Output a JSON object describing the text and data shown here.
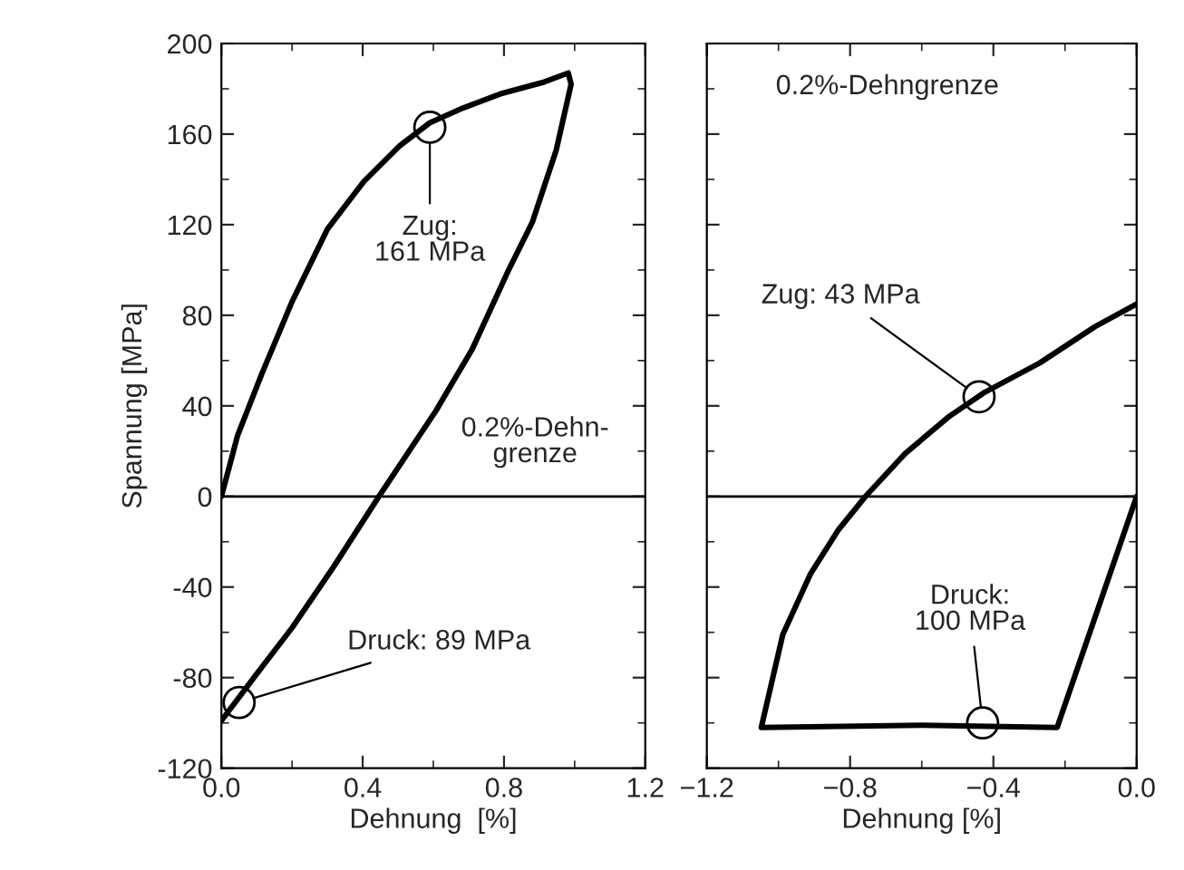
{
  "chart_data": [
    {
      "type": "line",
      "xlabel": "Dehnung  [%]",
      "ylabel": "Spannung [MPa]",
      "xlim": [
        0,
        1.2
      ],
      "ylim": [
        -120,
        200
      ],
      "xticks": [
        {
          "value": 0,
          "label": "0.0"
        },
        {
          "value": 0.4,
          "label": "0.4"
        },
        {
          "value": 0.8,
          "label": "0.8"
        },
        {
          "value": 1.2,
          "label": "1.2"
        }
      ],
      "yticks": [
        -120,
        -80,
        -40,
        0,
        40,
        80,
        120,
        160,
        200
      ],
      "grid": false,
      "series": [
        {
          "color": "#000000",
          "x": [
            0,
            0.046,
            0.114,
            0.2,
            0.3,
            0.403,
            0.506,
            0.59,
            0.676,
            0.795,
            0.914,
            0.982,
            0.99,
            0.948,
            0.88,
            0.81,
            0.71,
            0.608,
            0.446,
            0.318,
            0.2,
            0.097,
            0
          ],
          "values": [
            0,
            27,
            54,
            86,
            118,
            139,
            155,
            165,
            171,
            178,
            183,
            187,
            182,
            153,
            121,
            99,
            65,
            38,
            0,
            -31,
            -58,
            -79,
            -99
          ]
        },
        {
          "type": "scatter",
          "marker": "circle",
          "color": "#000000",
          "x": [
            0.59,
            0.05
          ],
          "values": [
            163,
            -91
          ]
        }
      ],
      "ref_lines": [
        {
          "axis": "y",
          "value": 0,
          "color": "#000000"
        }
      ],
      "annotations": [
        {
          "text": "Zug:\n161 MPa",
          "x": 0.59,
          "y": 163
        },
        {
          "text": "Druck: 89 MPa",
          "x": 0.05,
          "y": -91
        },
        "0.2%-Dehn-\ngrenze"
      ]
    },
    {
      "type": "line",
      "xlabel": "Dehnung [%]",
      "xlim": [
        -1.2,
        0
      ],
      "ylim": [
        -120,
        200
      ],
      "xticks": [
        {
          "value": -1.2,
          "label": "−1.2"
        },
        {
          "value": -0.8,
          "label": "−0.8"
        },
        {
          "value": -0.4,
          "label": "−0.4"
        },
        {
          "value": 0,
          "label": "0.0"
        }
      ],
      "yticks": [
        -120,
        -80,
        -40,
        0,
        40,
        80,
        120,
        160,
        200
      ],
      "tick_labels": "x",
      "grid": false,
      "series": [
        {
          "color": "#000000",
          "x": [
            0,
            -0.222,
            -0.6,
            -1.048,
            -0.988,
            -0.91,
            -0.834,
            -0.757,
            -0.646,
            -0.526,
            -0.424,
            -0.27,
            -0.116,
            0
          ],
          "values": [
            0,
            -102,
            -101,
            -102,
            -61,
            -34,
            -15,
            0,
            19,
            35,
            46,
            59,
            75,
            85
          ]
        },
        {
          "type": "scatter",
          "marker": "circle",
          "color": "#000000",
          "x": [
            -0.44,
            -0.43
          ],
          "values": [
            44,
            -100
          ]
        }
      ],
      "ref_lines": [
        {
          "axis": "y",
          "value": 0,
          "color": "#000000"
        }
      ],
      "annotations": [
        "0.2%-Dehngrenze",
        {
          "text": "Zug: 43 MPa",
          "x": -0.44,
          "y": 44
        },
        {
          "text": "Druck:\n100 MPa",
          "x": -0.43,
          "y": -100
        }
      ]
    }
  ]
}
